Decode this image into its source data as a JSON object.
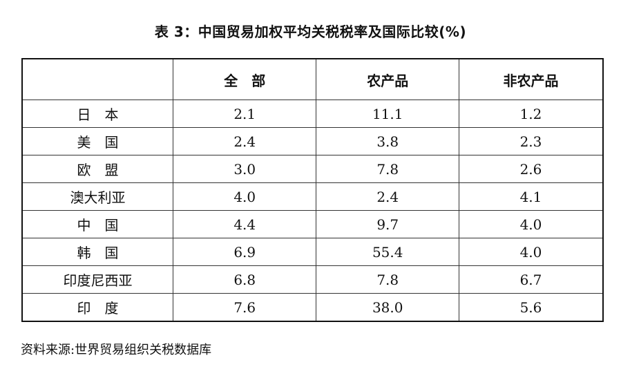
{
  "title": "表 3：中国贸易加权平均关税税率及国际比较(%)",
  "table": {
    "headers": [
      "",
      "全　部",
      "农产品",
      "非农产品"
    ],
    "rows": [
      [
        "日　本",
        "2.1",
        "11.1",
        "1.2"
      ],
      [
        "美　国",
        "2.4",
        "3.8",
        "2.3"
      ],
      [
        "欧　盟",
        "3.0",
        "7.8",
        "2.6"
      ],
      [
        "澳大利亚",
        "4.0",
        "2.4",
        "4.1"
      ],
      [
        "中　国",
        "4.4",
        "9.7",
        "4.0"
      ],
      [
        "韩　国",
        "6.9",
        "55.4",
        "4.0"
      ],
      [
        "印度尼西亚",
        "6.8",
        "7.8",
        "6.7"
      ],
      [
        "印　度",
        "7.6",
        "38.0",
        "5.6"
      ]
    ]
  },
  "source": "资料来源:世界贸易组织关税数据库"
}
